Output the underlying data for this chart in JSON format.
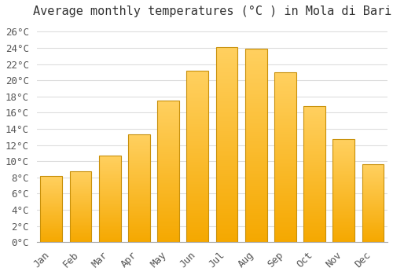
{
  "title": "Average monthly temperatures (°C ) in Mola di Bari",
  "months": [
    "Jan",
    "Feb",
    "Mar",
    "Apr",
    "May",
    "Jun",
    "Jul",
    "Aug",
    "Sep",
    "Oct",
    "Nov",
    "Dec"
  ],
  "values": [
    8.2,
    8.8,
    10.7,
    13.3,
    17.5,
    21.2,
    24.1,
    23.9,
    21.0,
    16.8,
    12.7,
    9.6
  ],
  "bar_color_bottom": "#F5A800",
  "bar_color_top": "#FFD060",
  "bar_edge_color": "#C8900A",
  "background_color": "#FFFFFF",
  "plot_bg_color": "#FFFFFF",
  "grid_color": "#DDDDDD",
  "ylim": [
    0,
    27
  ],
  "ytick_step": 2,
  "title_fontsize": 11,
  "tick_fontsize": 9,
  "font_family": "monospace",
  "title_color": "#333333",
  "tick_color": "#555555"
}
